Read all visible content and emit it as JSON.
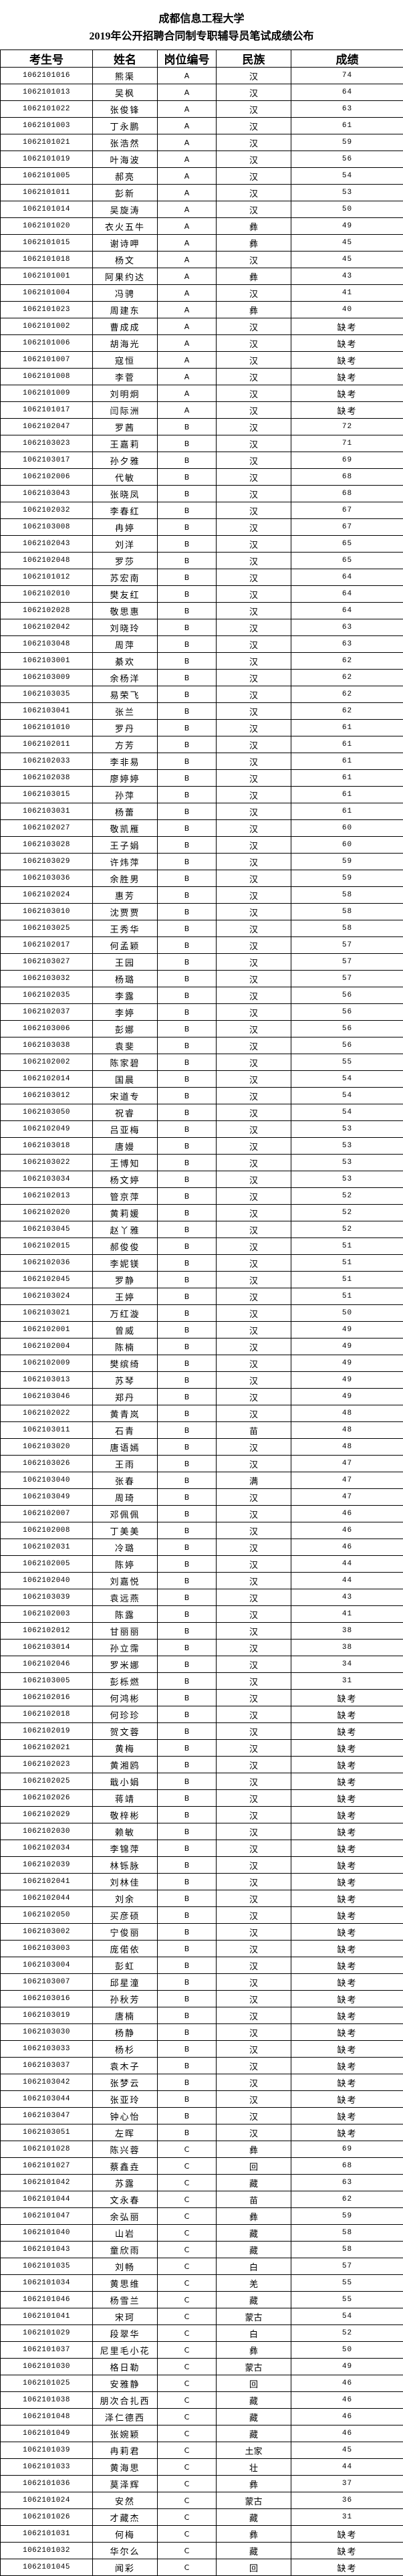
{
  "title": {
    "line1": "成都信息工程大学",
    "line2": "2019年公开招聘合同制专职辅导员笔试成绩公布"
  },
  "table": {
    "headers": [
      "考生号",
      "姓名",
      "岗位编号",
      "民族",
      "成绩"
    ],
    "rows": [
      [
        "1062101016",
        "熊渠",
        "A",
        "汉",
        "74"
      ],
      [
        "1062101013",
        "吴枫",
        "A",
        "汉",
        "64"
      ],
      [
        "1062101022",
        "张俊锋",
        "A",
        "汉",
        "63"
      ],
      [
        "1062101003",
        "丁永鹏",
        "A",
        "汉",
        "61"
      ],
      [
        "1062101021",
        "张浩然",
        "A",
        "汉",
        "59"
      ],
      [
        "1062101019",
        "叶海波",
        "A",
        "汉",
        "56"
      ],
      [
        "1062101005",
        "郝亮",
        "A",
        "汉",
        "54"
      ],
      [
        "1062101011",
        "彭新",
        "A",
        "汉",
        "53"
      ],
      [
        "1062101014",
        "吴旋涛",
        "A",
        "汉",
        "50"
      ],
      [
        "1062101020",
        "衣火五牛",
        "A",
        "彝",
        "49"
      ],
      [
        "1062101015",
        "谢诗呷",
        "A",
        "彝",
        "45"
      ],
      [
        "1062101018",
        "杨文",
        "A",
        "汉",
        "45"
      ],
      [
        "1062101001",
        "阿果约达",
        "A",
        "彝",
        "43"
      ],
      [
        "1062101004",
        "冯骋",
        "A",
        "汉",
        "41"
      ],
      [
        "1062101023",
        "周建东",
        "A",
        "彝",
        "40"
      ],
      [
        "1062101002",
        "曹成成",
        "A",
        "汉",
        "缺考"
      ],
      [
        "1062101006",
        "胡海光",
        "A",
        "汉",
        "缺考"
      ],
      [
        "1062101007",
        "寇恒",
        "A",
        "汉",
        "缺考"
      ],
      [
        "1062101008",
        "李菅",
        "A",
        "汉",
        "缺考"
      ],
      [
        "1062101009",
        "刘明炯",
        "A",
        "汉",
        "缺考"
      ],
      [
        "1062101017",
        "闫际洲",
        "A",
        "汉",
        "缺考"
      ],
      [
        "1062102047",
        "罗茜",
        "B",
        "汉",
        "72"
      ],
      [
        "1062103023",
        "王嘉莉",
        "B",
        "汉",
        "71"
      ],
      [
        "1062103017",
        "孙夕雅",
        "B",
        "汉",
        "69"
      ],
      [
        "1062102006",
        "代敏",
        "B",
        "汉",
        "68"
      ],
      [
        "1062103043",
        "张晓凤",
        "B",
        "汉",
        "68"
      ],
      [
        "1062102032",
        "李春红",
        "B",
        "汉",
        "67"
      ],
      [
        "1062103008",
        "冉婷",
        "B",
        "汉",
        "67"
      ],
      [
        "1062102043",
        "刘洋",
        "B",
        "汉",
        "65"
      ],
      [
        "1062102048",
        "罗莎",
        "B",
        "汉",
        "65"
      ],
      [
        "1062101012",
        "苏宏南",
        "B",
        "汉",
        "64"
      ],
      [
        "1062102010",
        "樊友红",
        "B",
        "汉",
        "64"
      ],
      [
        "1062102028",
        "敬思惠",
        "B",
        "汉",
        "64"
      ],
      [
        "1062102042",
        "刘晓玲",
        "B",
        "汉",
        "63"
      ],
      [
        "1062103048",
        "周萍",
        "B",
        "汉",
        "63"
      ],
      [
        "1062103001",
        "綦欢",
        "B",
        "汉",
        "62"
      ],
      [
        "1062103009",
        "余杨洋",
        "B",
        "汉",
        "62"
      ],
      [
        "1062103035",
        "易荣飞",
        "B",
        "汉",
        "62"
      ],
      [
        "1062103041",
        "张兰",
        "B",
        "汉",
        "62"
      ],
      [
        "1062101010",
        "罗丹",
        "B",
        "汉",
        "61"
      ],
      [
        "1062102011",
        "方芳",
        "B",
        "汉",
        "61"
      ],
      [
        "1062102033",
        "李非易",
        "B",
        "汉",
        "61"
      ],
      [
        "1062102038",
        "廖婷婷",
        "B",
        "汉",
        "61"
      ],
      [
        "1062103015",
        "孙萍",
        "B",
        "汉",
        "61"
      ],
      [
        "1062103031",
        "杨蕾",
        "B",
        "汉",
        "61"
      ],
      [
        "1062102027",
        "敬凯雁",
        "B",
        "汉",
        "60"
      ],
      [
        "1062103028",
        "王子娟",
        "B",
        "汉",
        "60"
      ],
      [
        "1062103029",
        "许炜萍",
        "B",
        "汉",
        "59"
      ],
      [
        "1062103036",
        "余胜男",
        "B",
        "汉",
        "59"
      ],
      [
        "1062102024",
        "惠芳",
        "B",
        "汉",
        "58"
      ],
      [
        "1062103010",
        "沈贾贾",
        "B",
        "汉",
        "58"
      ],
      [
        "1062103025",
        "王秀华",
        "B",
        "汉",
        "58"
      ],
      [
        "1062102017",
        "何孟颖",
        "B",
        "汉",
        "57"
      ],
      [
        "1062103027",
        "王园",
        "B",
        "汉",
        "57"
      ],
      [
        "1062103032",
        "杨璐",
        "B",
        "汉",
        "57"
      ],
      [
        "1062102035",
        "李露",
        "B",
        "汉",
        "56"
      ],
      [
        "1062102037",
        "李婷",
        "B",
        "汉",
        "56"
      ],
      [
        "1062103006",
        "彭娜",
        "B",
        "汉",
        "56"
      ],
      [
        "1062103038",
        "袁斐",
        "B",
        "汉",
        "56"
      ],
      [
        "1062102002",
        "陈家碧",
        "B",
        "汉",
        "55"
      ],
      [
        "1062102014",
        "国晨",
        "B",
        "汉",
        "54"
      ],
      [
        "1062103012",
        "宋道专",
        "B",
        "汉",
        "54"
      ],
      [
        "1062103050",
        "祝睿",
        "B",
        "汉",
        "54"
      ],
      [
        "1062102049",
        "吕亚梅",
        "B",
        "汉",
        "53"
      ],
      [
        "1062103018",
        "唐嫚",
        "B",
        "汉",
        "53"
      ],
      [
        "1062103022",
        "王博知",
        "B",
        "汉",
        "53"
      ],
      [
        "1062103034",
        "杨文婷",
        "B",
        "汉",
        "53"
      ],
      [
        "1062102013",
        "管京萍",
        "B",
        "汉",
        "52"
      ],
      [
        "1062102020",
        "黄莉媛",
        "B",
        "汉",
        "52"
      ],
      [
        "1062103045",
        "赵丫雅",
        "B",
        "汉",
        "52"
      ],
      [
        "1062102015",
        "郝俊俊",
        "B",
        "汉",
        "51"
      ],
      [
        "1062102036",
        "李妮镁",
        "B",
        "汉",
        "51"
      ],
      [
        "1062102045",
        "罗静",
        "B",
        "汉",
        "51"
      ],
      [
        "1062103024",
        "王婷",
        "B",
        "汉",
        "51"
      ],
      [
        "1062103021",
        "万红漩",
        "B",
        "汉",
        "50"
      ],
      [
        "1062102001",
        "曾威",
        "B",
        "汉",
        "49"
      ],
      [
        "1062102004",
        "陈楠",
        "B",
        "汉",
        "49"
      ],
      [
        "1062102009",
        "樊缤绮",
        "B",
        "汉",
        "49"
      ],
      [
        "1062103013",
        "苏琴",
        "B",
        "汉",
        "49"
      ],
      [
        "1062103046",
        "郑丹",
        "B",
        "汉",
        "49"
      ],
      [
        "1062102022",
        "黄青岚",
        "B",
        "汉",
        "48"
      ],
      [
        "1062103011",
        "石青",
        "B",
        "苗",
        "48"
      ],
      [
        "1062103020",
        "唐语嫣",
        "B",
        "汉",
        "48"
      ],
      [
        "1062103026",
        "王雨",
        "B",
        "汉",
        "47"
      ],
      [
        "1062103040",
        "张春",
        "B",
        "满",
        "47"
      ],
      [
        "1062103049",
        "周琦",
        "B",
        "汉",
        "47"
      ],
      [
        "1062102007",
        "邓佩佩",
        "B",
        "汉",
        "46"
      ],
      [
        "1062102008",
        "丁美美",
        "B",
        "汉",
        "46"
      ],
      [
        "1062102031",
        "冷璐",
        "B",
        "汉",
        "46"
      ],
      [
        "1062102005",
        "陈婷",
        "B",
        "汉",
        "44"
      ],
      [
        "1062102040",
        "刘嘉悦",
        "B",
        "汉",
        "44"
      ],
      [
        "1062103039",
        "袁远燕",
        "B",
        "汉",
        "43"
      ],
      [
        "1062102003",
        "陈露",
        "B",
        "汉",
        "41"
      ],
      [
        "1062102012",
        "甘丽丽",
        "B",
        "汉",
        "38"
      ],
      [
        "1062103014",
        "孙立霈",
        "B",
        "汉",
        "38"
      ],
      [
        "1062102046",
        "罗米娜",
        "B",
        "汉",
        "34"
      ],
      [
        "1062103005",
        "彭栎燃",
        "B",
        "汉",
        "31"
      ],
      [
        "1062102016",
        "何鸿彬",
        "B",
        "汉",
        "缺考"
      ],
      [
        "1062102018",
        "何珍珍",
        "B",
        "汉",
        "缺考"
      ],
      [
        "1062102019",
        "贺文蓉",
        "B",
        "汉",
        "缺考"
      ],
      [
        "1062102021",
        "黄梅",
        "B",
        "汉",
        "缺考"
      ],
      [
        "1062102023",
        "黄湘鸥",
        "B",
        "汉",
        "缺考"
      ],
      [
        "1062102025",
        "戢小娟",
        "B",
        "汉",
        "缺考"
      ],
      [
        "1062102026",
        "蒋靖",
        "B",
        "汉",
        "缺考"
      ],
      [
        "1062102029",
        "敬梓彬",
        "B",
        "汉",
        "缺考"
      ],
      [
        "1062102030",
        "赖敏",
        "B",
        "汉",
        "缺考"
      ],
      [
        "1062102034",
        "李锦萍",
        "B",
        "汉",
        "缺考"
      ],
      [
        "1062102039",
        "林铄脉",
        "B",
        "汉",
        "缺考"
      ],
      [
        "1062102041",
        "刘林佳",
        "B",
        "汉",
        "缺考"
      ],
      [
        "1062102044",
        "刘余",
        "B",
        "汉",
        "缺考"
      ],
      [
        "1062102050",
        "买彦硕",
        "B",
        "汉",
        "缺考"
      ],
      [
        "1062103002",
        "宁俊丽",
        "B",
        "汉",
        "缺考"
      ],
      [
        "1062103003",
        "庞偌依",
        "B",
        "汉",
        "缺考"
      ],
      [
        "1062103004",
        "彭虹",
        "B",
        "汉",
        "缺考"
      ],
      [
        "1062103007",
        "邱星潼",
        "B",
        "汉",
        "缺考"
      ],
      [
        "1062103016",
        "孙秋芳",
        "B",
        "汉",
        "缺考"
      ],
      [
        "1062103019",
        "唐楠",
        "B",
        "汉",
        "缺考"
      ],
      [
        "1062103030",
        "杨静",
        "B",
        "汉",
        "缺考"
      ],
      [
        "1062103033",
        "杨杉",
        "B",
        "汉",
        "缺考"
      ],
      [
        "1062103037",
        "袁木子",
        "B",
        "汉",
        "缺考"
      ],
      [
        "1062103042",
        "张梦云",
        "B",
        "汉",
        "缺考"
      ],
      [
        "1062103044",
        "张亚玲",
        "B",
        "汉",
        "缺考"
      ],
      [
        "1062103047",
        "钟心怡",
        "B",
        "汉",
        "缺考"
      ],
      [
        "1062103051",
        "左晖",
        "B",
        "汉",
        "缺考"
      ],
      [
        "1062101028",
        "陈兴蓉",
        "C",
        "彝",
        "69"
      ],
      [
        "1062101027",
        "蔡鑫垚",
        "C",
        "回",
        "68"
      ],
      [
        "1062101042",
        "苏露",
        "C",
        "藏",
        "63"
      ],
      [
        "1062101044",
        "文永春",
        "C",
        "苗",
        "62"
      ],
      [
        "1062101047",
        "余弘丽",
        "C",
        "彝",
        "59"
      ],
      [
        "1062101040",
        "山岩",
        "C",
        "藏",
        "58"
      ],
      [
        "1062101043",
        "童欣雨",
        "C",
        "藏",
        "58"
      ],
      [
        "1062101035",
        "刘畅",
        "C",
        "白",
        "57"
      ],
      [
        "1062101034",
        "黄思维",
        "C",
        "羌",
        "55"
      ],
      [
        "1062101046",
        "杨雪兰",
        "C",
        "藏",
        "55"
      ],
      [
        "1062101041",
        "宋珂",
        "C",
        "蒙古",
        "54"
      ],
      [
        "1062101029",
        "段翠华",
        "C",
        "白",
        "52"
      ],
      [
        "1062101037",
        "尼里毛小花",
        "C",
        "彝",
        "50"
      ],
      [
        "1062101030",
        "格日勒",
        "C",
        "蒙古",
        "49"
      ],
      [
        "1062101025",
        "安雅静",
        "C",
        "回",
        "46"
      ],
      [
        "1062101038",
        "朋次合扎西",
        "C",
        "藏",
        "46"
      ],
      [
        "1062101048",
        "泽仁德西",
        "C",
        "藏",
        "46"
      ],
      [
        "1062101049",
        "张婉颖",
        "C",
        "藏",
        "46"
      ],
      [
        "1062101039",
        "冉莉君",
        "C",
        "土家",
        "45"
      ],
      [
        "1062101033",
        "黄海思",
        "C",
        "壮",
        "44"
      ],
      [
        "1062101036",
        "莫泽辉",
        "C",
        "彝",
        "37"
      ],
      [
        "1062101024",
        "安然",
        "C",
        "蒙古",
        "36"
      ],
      [
        "1062101026",
        "才藏杰",
        "C",
        "藏",
        "31"
      ],
      [
        "1062101031",
        "何梅",
        "C",
        "彝",
        "缺考"
      ],
      [
        "1062101032",
        "华尔么",
        "C",
        "藏",
        "缺考"
      ],
      [
        "1062101045",
        "闻彩",
        "C",
        "回",
        "缺考"
      ]
    ]
  }
}
